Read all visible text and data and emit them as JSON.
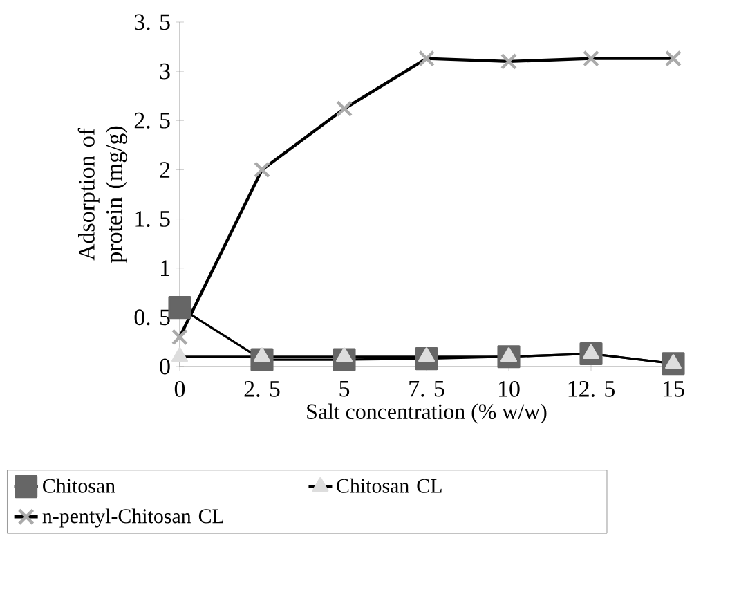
{
  "chart_data": {
    "type": "line",
    "xlabel": "Salt concentration (% w/w)",
    "ylabel": "Adsorption of protein (mg/g)",
    "categories": [
      "0",
      "2. 5",
      "5",
      "7. 5",
      "10",
      "12. 5",
      "15"
    ],
    "ylim": [
      0,
      3.5
    ],
    "yticks": [
      0,
      {
        "value": 0.5,
        "label": "0. 5"
      },
      1,
      {
        "value": 1.5,
        "label": "1. 5"
      },
      2,
      {
        "value": 2.5,
        "label": "2. 5"
      },
      3,
      {
        "value": 3.5,
        "label": "3. 5"
      }
    ],
    "legend": "bottom",
    "grid": false,
    "series": [
      {
        "name": "Chitosan",
        "color": "#666666",
        "marker": "square",
        "values": [
          0.6,
          0.07,
          0.07,
          0.08,
          0.1,
          0.13,
          0.03
        ]
      },
      {
        "name": "Chitosan CL",
        "color": "#dddddd",
        "marker": "triangle",
        "values": [
          0.1,
          0.1,
          0.1,
          0.1,
          0.1,
          0.13,
          0.03
        ]
      },
      {
        "name": "n-pentyl-Chitosan CL",
        "color": "#aaaaaa",
        "marker": "cross",
        "values": [
          0.3,
          2.0,
          2.62,
          3.13,
          3.1,
          3.13,
          3.13
        ]
      }
    ]
  }
}
